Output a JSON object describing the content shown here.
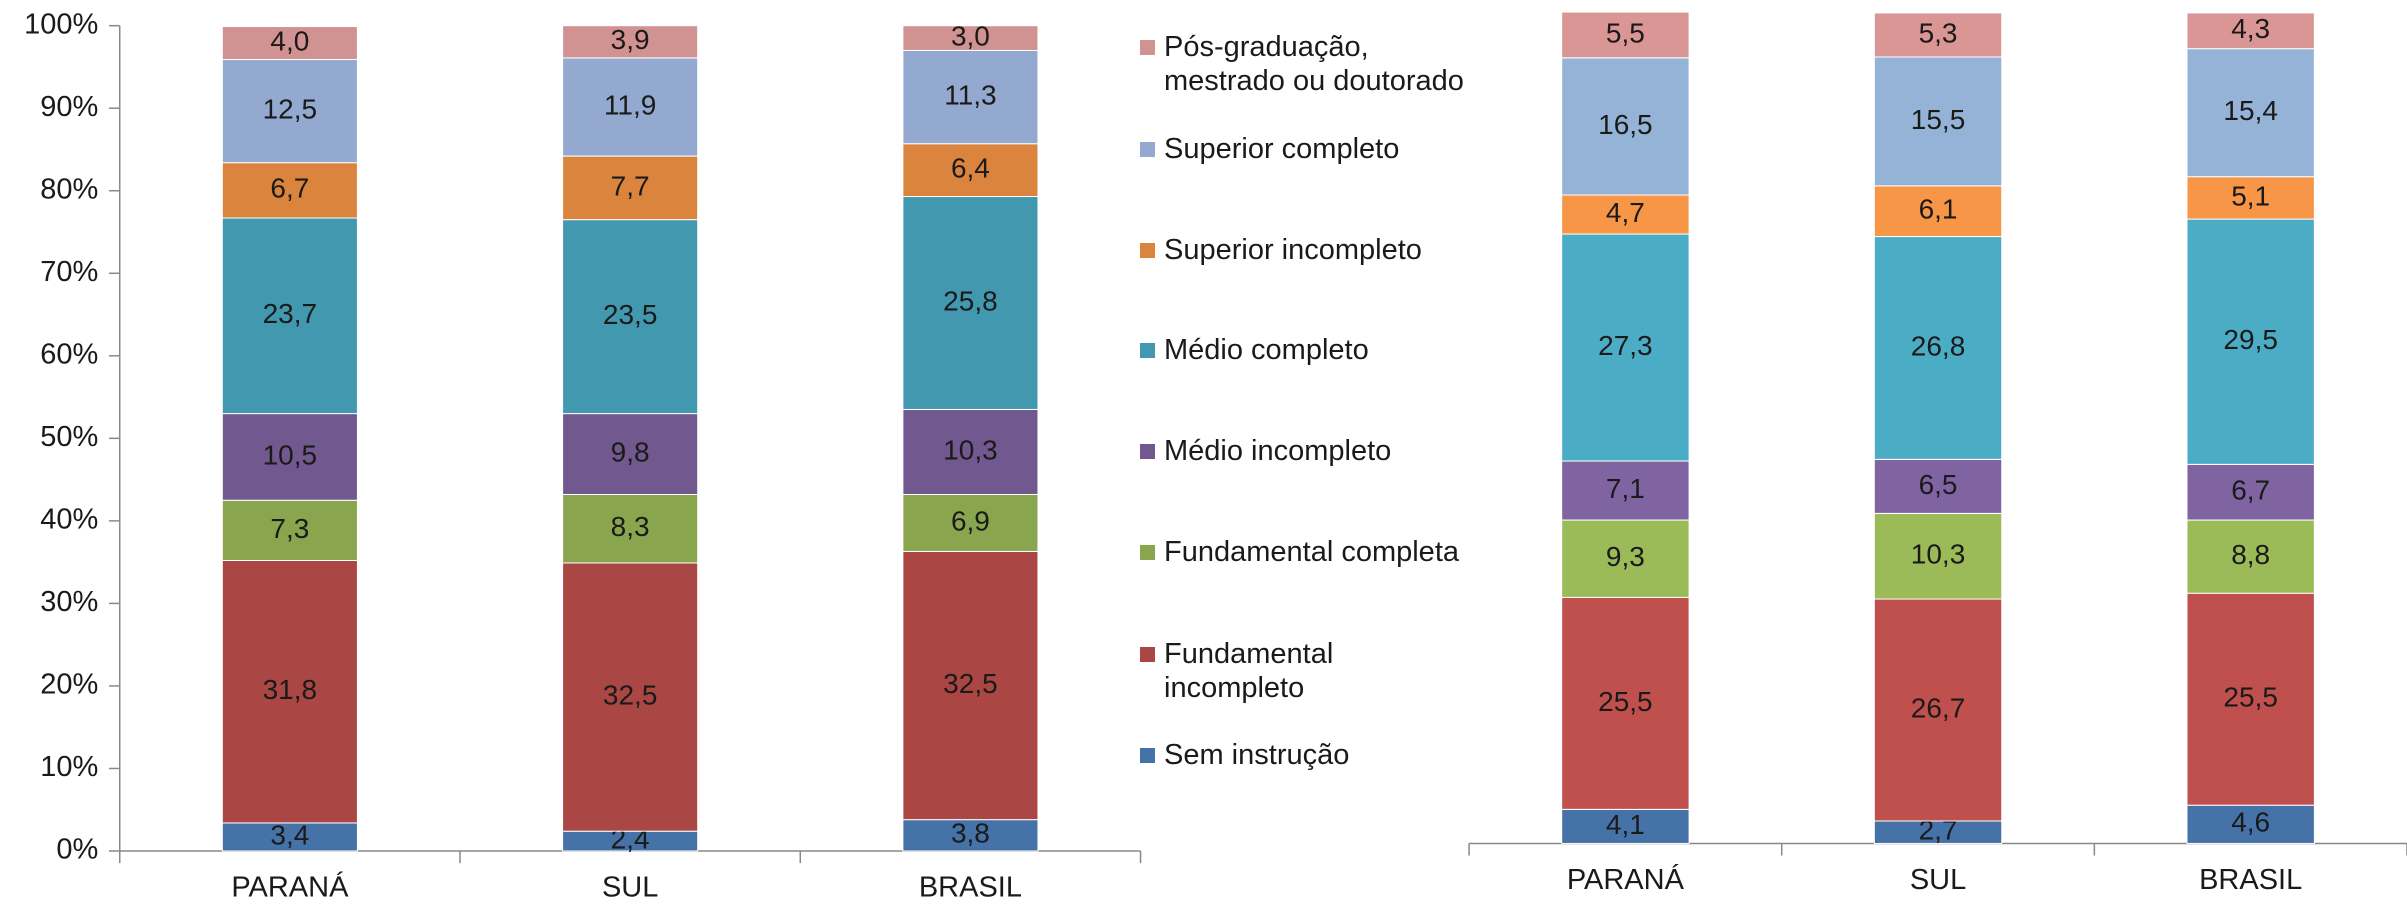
{
  "chart_data": [
    {
      "type": "bar",
      "stacked": true,
      "categories": [
        "PARANÁ",
        "SUL",
        "BRASIL"
      ],
      "ylim": [
        0,
        100
      ],
      "yticks": [
        {
          "value": 0,
          "label": "0%"
        },
        {
          "value": 10,
          "label": "10%"
        },
        {
          "value": 20,
          "label": "20%"
        },
        {
          "value": 30,
          "label": "30%"
        },
        {
          "value": 40,
          "label": "40%"
        },
        {
          "value": 50,
          "label": "50%"
        },
        {
          "value": 60,
          "label": "60%"
        },
        {
          "value": 70,
          "label": "70%"
        },
        {
          "value": 80,
          "label": "80%"
        },
        {
          "value": 90,
          "label": "90%"
        },
        {
          "value": 100,
          "label": "100%"
        }
      ],
      "legend": "right",
      "series": [
        {
          "name": "Sem instrução",
          "color": "#4572a7",
          "values": [
            3.4,
            2.4,
            3.8
          ],
          "value_labels": [
            "3,4",
            "2,4",
            "3,8"
          ]
        },
        {
          "name": "Fundamental incompleto",
          "color": "#aa4643",
          "values": [
            31.8,
            32.5,
            32.5
          ],
          "value_labels": [
            "31,8",
            "32,5",
            "32,5"
          ]
        },
        {
          "name": "Fundamental completa",
          "color": "#89a54e",
          "values": [
            7.3,
            8.3,
            6.9
          ],
          "value_labels": [
            "7,3",
            "8,3",
            "6,9"
          ]
        },
        {
          "name": "Médio incompleto",
          "color": "#71588f",
          "values": [
            10.5,
            9.8,
            10.3
          ],
          "value_labels": [
            "10,5",
            "9,8",
            "10,3"
          ]
        },
        {
          "name": "Médio completo",
          "color": "#4198af",
          "values": [
            23.7,
            23.5,
            25.8
          ],
          "value_labels": [
            "23,7",
            "23,5",
            "25,8"
          ]
        },
        {
          "name": "Superior incompleto",
          "color": "#db843d",
          "values": [
            6.7,
            7.7,
            6.4
          ],
          "value_labels": [
            "6,7",
            "7,7",
            "6,4"
          ]
        },
        {
          "name": "Superior completo",
          "color": "#93a9cf",
          "values": [
            12.5,
            11.9,
            11.3
          ],
          "value_labels": [
            "12,5",
            "11,9",
            "11,3"
          ]
        },
        {
          "name": "Pós-graduação, mestrado ou doutorado",
          "color": "#d19392",
          "values": [
            4.0,
            3.9,
            3.0
          ],
          "value_labels": [
            "4,0",
            "3,9",
            "3,0"
          ]
        }
      ]
    },
    {
      "type": "bar",
      "stacked": true,
      "categories": [
        "PARANÁ",
        "SUL",
        "BRASIL"
      ],
      "ylim": [
        0,
        100
      ],
      "series": [
        {
          "color": "#4572a7",
          "values": [
            4.1,
            2.7,
            4.6
          ],
          "value_labels": [
            "4,1",
            "2,7",
            "4,6"
          ]
        },
        {
          "color": "#c0504d",
          "values": [
            25.5,
            26.7,
            25.5
          ],
          "value_labels": [
            "25,5",
            "26,7",
            "25,5"
          ]
        },
        {
          "color": "#9bbb59",
          "values": [
            9.3,
            10.3,
            8.8
          ],
          "value_labels": [
            "9,3",
            "10,3",
            "8,8"
          ]
        },
        {
          "color": "#8064a2",
          "values": [
            7.1,
            6.5,
            6.7
          ],
          "value_labels": [
            "7,1",
            "6,5",
            "6,7"
          ]
        },
        {
          "color": "#4bacc6",
          "values": [
            27.3,
            26.8,
            29.5
          ],
          "value_labels": [
            "27,3",
            "26,8",
            "29,5"
          ]
        },
        {
          "color": "#f79646",
          "values": [
            4.7,
            6.1,
            5.1
          ],
          "value_labels": [
            "4,7",
            "6,1",
            "5,1"
          ]
        },
        {
          "color": "#95b3d7",
          "values": [
            16.5,
            15.5,
            15.4
          ],
          "value_labels": [
            "16,5",
            "15,5",
            "15,4"
          ]
        },
        {
          "color": "#d99694",
          "values": [
            5.5,
            5.3,
            4.3
          ],
          "value_labels": [
            "5,5",
            "5,3",
            "4,3"
          ]
        }
      ]
    }
  ]
}
